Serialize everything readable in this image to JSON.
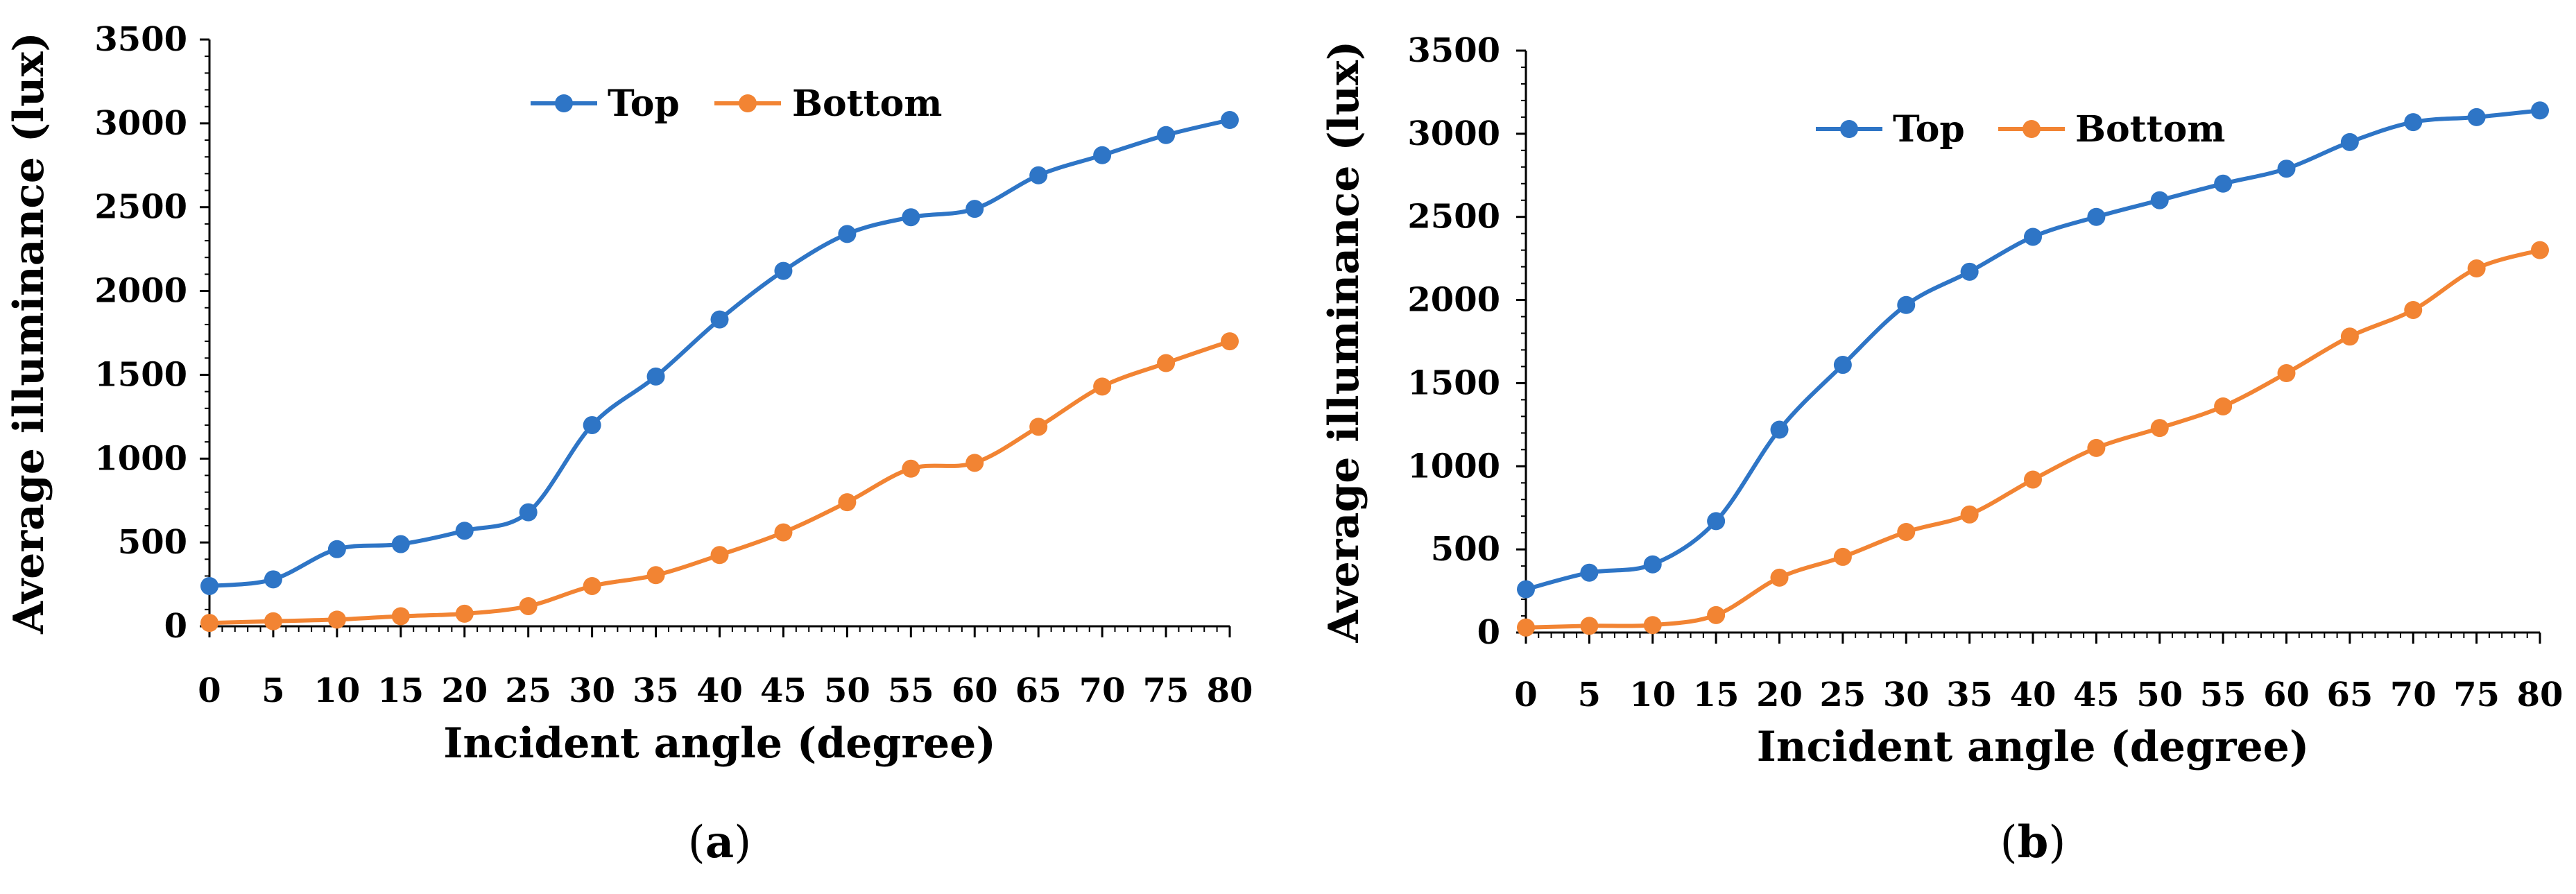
{
  "chart_data": [
    {
      "panel": "a",
      "type": "line",
      "caption": {
        "open": "(",
        "letter": "a",
        "close": ")"
      },
      "xlabel": "Incident angle (degree)",
      "ylabel": "Average illuminance (lux)",
      "xlim": [
        0,
        80
      ],
      "ylim": [
        0,
        3500
      ],
      "x_ticks": [
        0,
        5,
        10,
        15,
        20,
        25,
        30,
        35,
        40,
        45,
        50,
        55,
        60,
        65,
        70,
        75,
        80
      ],
      "y_ticks": [
        0,
        500,
        1000,
        1500,
        2000,
        2500,
        3000,
        3500
      ],
      "legend_position": "top-center",
      "grid": false,
      "x": [
        0,
        5,
        10,
        15,
        20,
        25,
        30,
        35,
        40,
        45,
        50,
        55,
        60,
        65,
        70,
        75,
        80
      ],
      "series": [
        {
          "name": "Top",
          "color": "#2E75C6",
          "values": [
            240,
            280,
            460,
            490,
            570,
            680,
            1200,
            1490,
            1830,
            2120,
            2340,
            2440,
            2490,
            2690,
            2810,
            2930,
            3020
          ]
        },
        {
          "name": "Bottom",
          "color": "#F28433",
          "values": [
            20,
            30,
            40,
            60,
            75,
            120,
            240,
            305,
            425,
            560,
            740,
            940,
            975,
            1190,
            1430,
            1570,
            1700
          ]
        }
      ]
    },
    {
      "panel": "b",
      "type": "line",
      "caption": {
        "open": "(",
        "letter": "b",
        "close": ")"
      },
      "xlabel": "Incident angle (degree)",
      "ylabel": "Average illuminance (lux)",
      "xlim": [
        0,
        80
      ],
      "ylim": [
        0,
        3500
      ],
      "x_ticks": [
        0,
        5,
        10,
        15,
        20,
        25,
        30,
        35,
        40,
        45,
        50,
        55,
        60,
        65,
        70,
        75,
        80
      ],
      "y_ticks": [
        0,
        500,
        1000,
        1500,
        2000,
        2500,
        3000,
        3500
      ],
      "legend_position": "top-center",
      "grid": false,
      "x": [
        0,
        5,
        10,
        15,
        20,
        25,
        30,
        35,
        40,
        45,
        50,
        55,
        60,
        65,
        70,
        75,
        80
      ],
      "series": [
        {
          "name": "Top",
          "color": "#2E75C6",
          "values": [
            260,
            360,
            410,
            670,
            1220,
            1610,
            1970,
            2170,
            2380,
            2500,
            2600,
            2700,
            2790,
            2950,
            3070,
            3100,
            3140
          ]
        },
        {
          "name": "Bottom",
          "color": "#F28433",
          "values": [
            30,
            40,
            45,
            105,
            330,
            455,
            605,
            710,
            920,
            1110,
            1230,
            1360,
            1560,
            1780,
            1940,
            2190,
            2300
          ]
        }
      ]
    }
  ]
}
